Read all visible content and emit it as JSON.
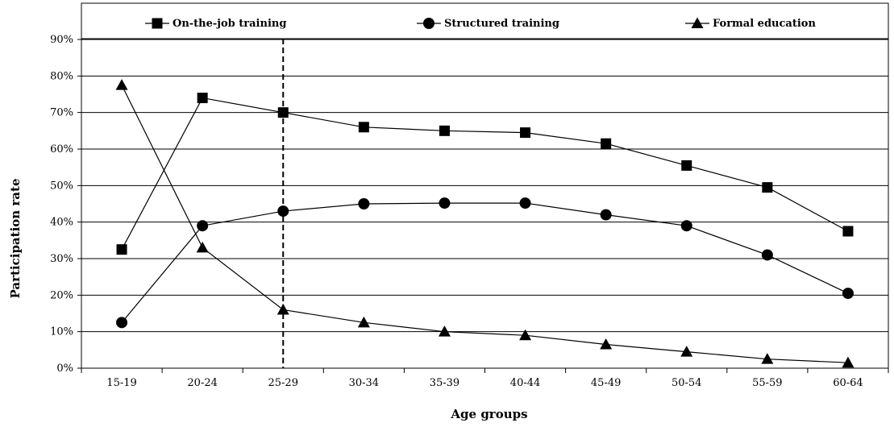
{
  "chart_data": {
    "type": "line",
    "title": "",
    "xlabel": "Age groups",
    "ylabel": "Participation rate",
    "categories": [
      "15-19",
      "20-24",
      "25-29",
      "30-34",
      "35-39",
      "40-44",
      "45-49",
      "50-54",
      "55-59",
      "60-64"
    ],
    "ylim": [
      0,
      90
    ],
    "yticks": [
      "0%",
      "10%",
      "20%",
      "30%",
      "40%",
      "50%",
      "60%",
      "70%",
      "80%",
      "90%"
    ],
    "grid": true,
    "legend_position": "top",
    "reference_line": {
      "category": "25-29",
      "style": "dashed"
    },
    "series": [
      {
        "name": "On-the-job training",
        "marker": "square",
        "values": [
          32.5,
          74.0,
          70.0,
          66.0,
          65.0,
          64.5,
          61.5,
          55.5,
          49.5,
          37.5
        ]
      },
      {
        "name": "Structured training",
        "marker": "circle",
        "values": [
          12.5,
          39.0,
          43.0,
          45.0,
          45.2,
          45.2,
          42.0,
          39.0,
          31.0,
          20.5
        ]
      },
      {
        "name": "Formal education",
        "marker": "triangle",
        "values": [
          77.5,
          33.0,
          16.0,
          12.5,
          10.0,
          9.0,
          6.5,
          4.5,
          2.5,
          1.5
        ]
      }
    ]
  }
}
